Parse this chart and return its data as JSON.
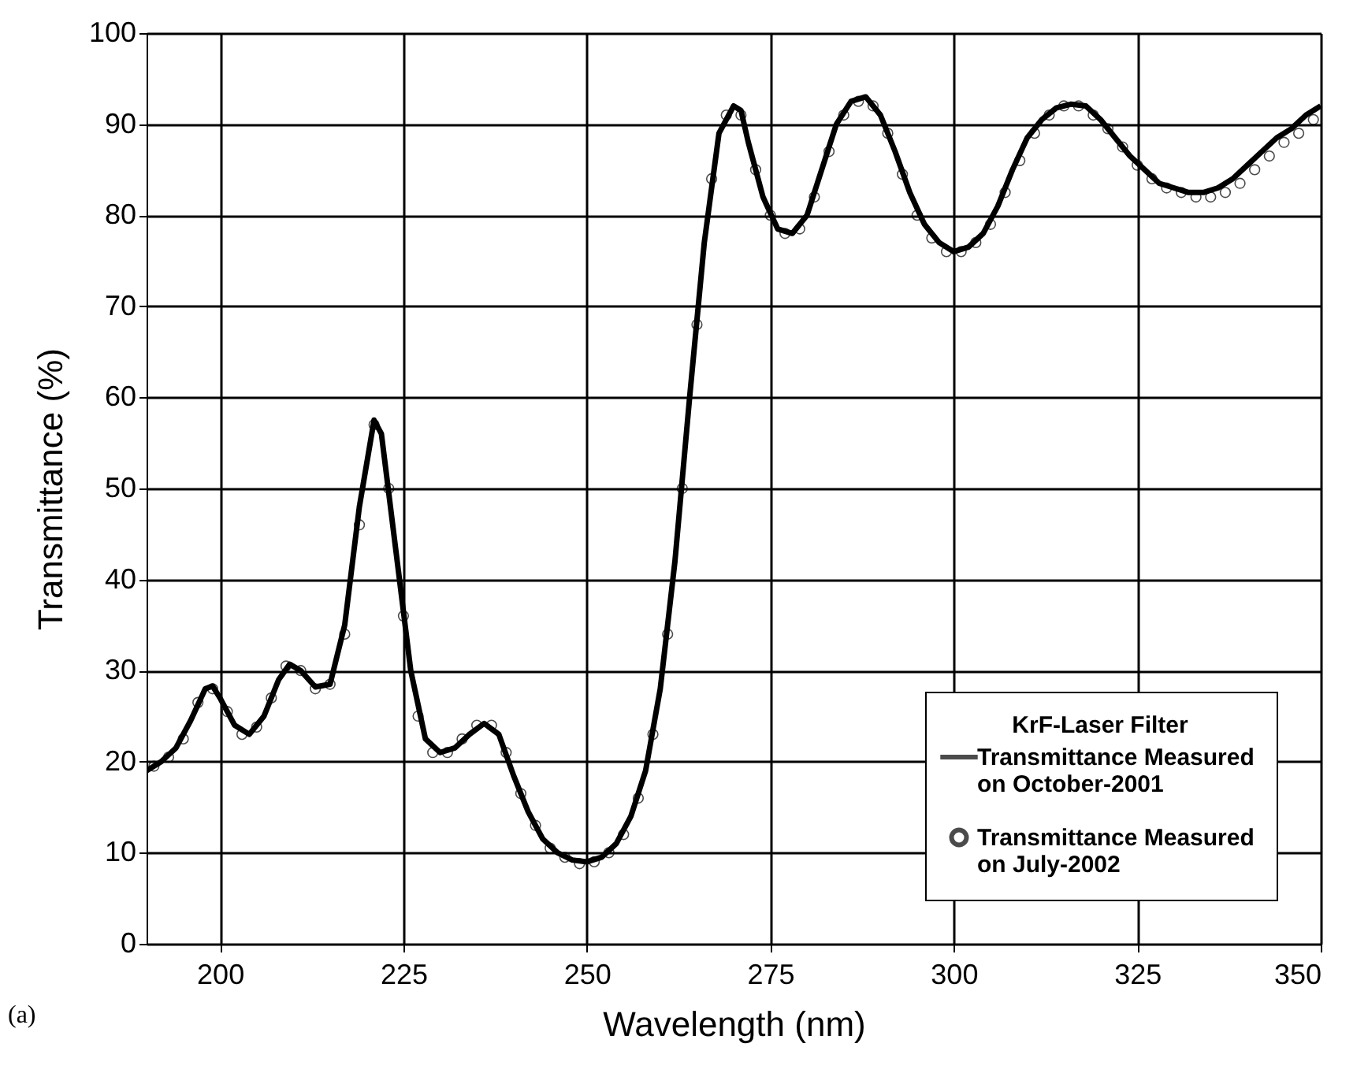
{
  "chart_data": {
    "type": "line",
    "xlabel": "Wavelength (nm)",
    "ylabel": "Transmittance (%)",
    "legend_title": "KrF-Laser Filter",
    "xlim": [
      190,
      350
    ],
    "xticks": [
      200,
      225,
      250,
      275,
      300,
      325,
      350
    ],
    "ylim": [
      0,
      100
    ],
    "yticks": [
      0,
      10,
      20,
      30,
      40,
      50,
      60,
      70,
      80,
      90,
      100
    ],
    "grid": true,
    "legend": "bottom right",
    "annotations": [
      "(a)"
    ],
    "series": [
      {
        "name": "Transmittance Measured on October-2001",
        "color": "#000000",
        "marker": "none",
        "x": [
          190,
          192,
          194,
          196,
          198,
          199,
          200,
          202,
          204,
          206,
          208,
          209.5,
          211,
          213,
          215,
          217,
          219,
          221,
          222,
          224,
          226,
          228,
          230,
          232,
          234,
          236,
          238,
          240,
          242,
          244,
          246,
          248,
          250,
          252,
          254,
          256,
          258,
          260,
          262,
          264,
          266,
          268,
          270,
          271,
          272,
          274,
          276,
          278,
          280,
          282,
          284,
          286,
          288,
          290,
          292,
          294,
          296,
          298,
          300,
          302,
          304,
          306,
          308,
          310,
          312,
          314,
          316,
          318,
          320,
          322,
          324,
          326,
          328,
          330,
          332,
          334,
          336,
          338,
          340,
          342,
          344,
          346,
          348,
          350
        ],
        "values": [
          19,
          20,
          21.5,
          24.5,
          28,
          28.3,
          27,
          24,
          23,
          25,
          29,
          30.7,
          30,
          28.2,
          28.5,
          35,
          48,
          57.5,
          56,
          43,
          30,
          22.5,
          21,
          21.5,
          23,
          24.2,
          23,
          18.5,
          14.5,
          11.5,
          10,
          9.2,
          9,
          9.5,
          11,
          14,
          19,
          28,
          42,
          60,
          77,
          89,
          92,
          91.5,
          88,
          82,
          78.5,
          78,
          80,
          85,
          90,
          92.5,
          93,
          91,
          87,
          82.5,
          79,
          77,
          76,
          76.5,
          78,
          81,
          85,
          88.5,
          90.5,
          91.8,
          92.2,
          92,
          90.5,
          88.5,
          86.5,
          85,
          83.5,
          83,
          82.5,
          82.5,
          83,
          84,
          85.5,
          87,
          88.5,
          89.5,
          91,
          92
        ]
      },
      {
        "name": "Transmittance Measured on July-2002",
        "color": "#000000",
        "type": "scatter",
        "marker": "circle",
        "x": [
          191,
          193,
          195,
          197,
          199,
          201,
          203,
          205,
          207,
          209,
          211,
          213,
          215,
          217,
          219,
          221,
          223,
          225,
          227,
          229,
          231,
          233,
          235,
          237,
          239,
          241,
          243,
          245,
          247,
          249,
          251,
          253,
          255,
          257,
          259,
          261,
          263,
          265,
          267,
          269,
          271,
          273,
          275,
          277,
          279,
          281,
          283,
          285,
          287,
          289,
          291,
          293,
          295,
          297,
          299,
          301,
          303,
          305,
          307,
          309,
          311,
          313,
          315,
          317,
          319,
          321,
          323,
          325,
          327,
          329,
          331,
          333,
          335,
          337,
          339,
          341,
          343,
          345,
          347,
          349
        ],
        "values": [
          19.5,
          20.5,
          22.5,
          26.5,
          28,
          25.5,
          23,
          23.8,
          27,
          30.5,
          30,
          28,
          28.5,
          34,
          46,
          57,
          50,
          36,
          25,
          21,
          21,
          22.5,
          24,
          24,
          21,
          16.5,
          13,
          10.5,
          9.5,
          8.8,
          9,
          10,
          12,
          16,
          23,
          34,
          50,
          68,
          84,
          91,
          91,
          85,
          80,
          78,
          78.5,
          82,
          87,
          91,
          92.5,
          92,
          89,
          84.5,
          80,
          77.5,
          76,
          76,
          77,
          79,
          82.5,
          86,
          89,
          91,
          92,
          92,
          91,
          89.5,
          87.5,
          85.5,
          84,
          83,
          82.5,
          82,
          82,
          82.5,
          83.5,
          85,
          86.5,
          88,
          89,
          90.5
        ]
      }
    ]
  }
}
